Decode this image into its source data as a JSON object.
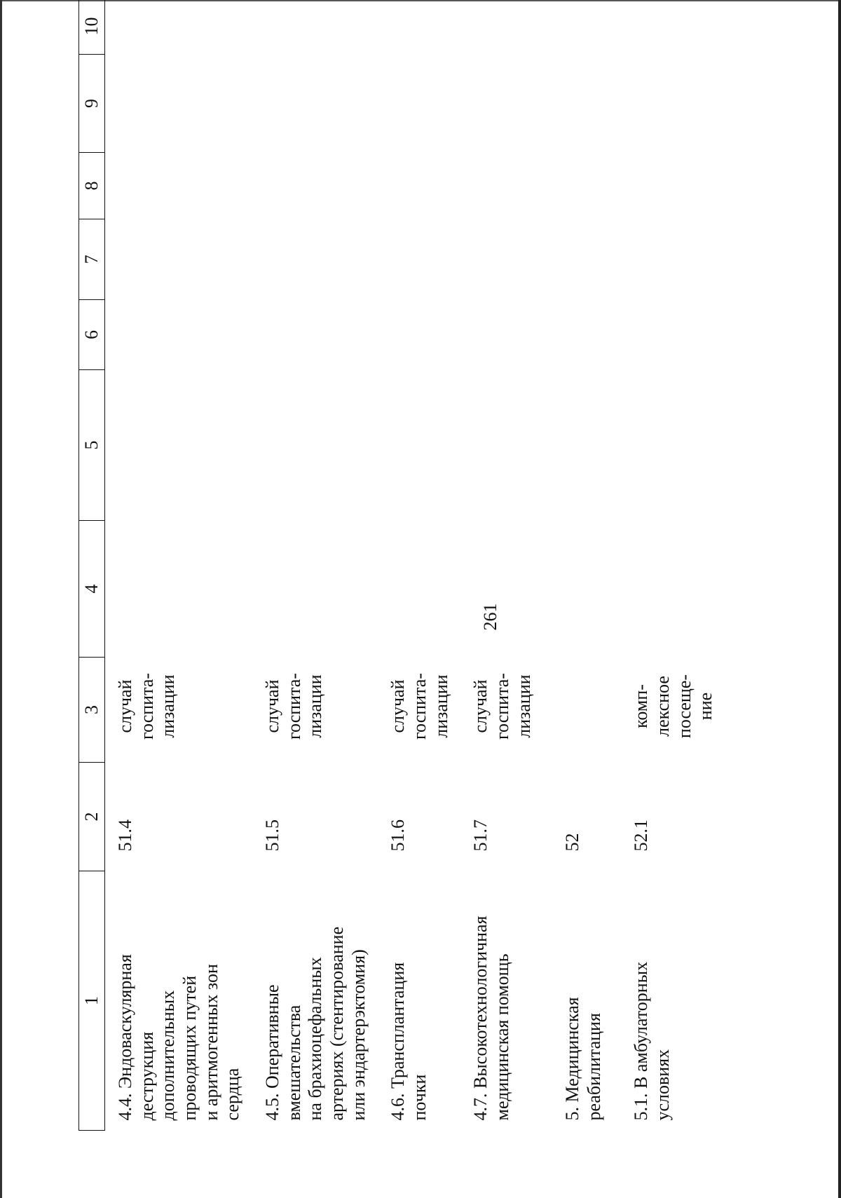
{
  "page_number": "261",
  "table": {
    "headers": [
      "1",
      "2",
      "3",
      "4",
      "5",
      "6",
      "7",
      "8",
      "9",
      "10"
    ],
    "rows": [
      {
        "name": "4.4. Эндоваскулярная\nдеструкция\nдополнительных\nпроводящих путей\nи аритмогенных зон\nсердца",
        "code": "51.4",
        "unit": "случай\nгоспита-\nлизации"
      },
      {
        "name": "4.5. Оперативные\nвмешательства\nна брахиоцефальных\nартериях (стентирование\nили эндартерэктомия)",
        "code": "51.5",
        "unit": "случай\nгоспита-\nлизации"
      },
      {
        "name": "4.6. Трансплантация\nпочки",
        "code": "51.6",
        "unit": "случай\nгоспита-\nлизации"
      },
      {
        "name": "4.7. Высокотехнологичная\nмедицинская помощь",
        "code": "51.7",
        "unit": "случай\nгоспита-\nлизации"
      },
      {
        "name": "5. Медицинская\nреабилитация",
        "code": "52",
        "unit": ""
      },
      {
        "name": "5.1. В амбулаторных\nусловиях",
        "code": "52.1",
        "unit": "комп-\nлексное\nпосеще-\nние"
      }
    ]
  }
}
